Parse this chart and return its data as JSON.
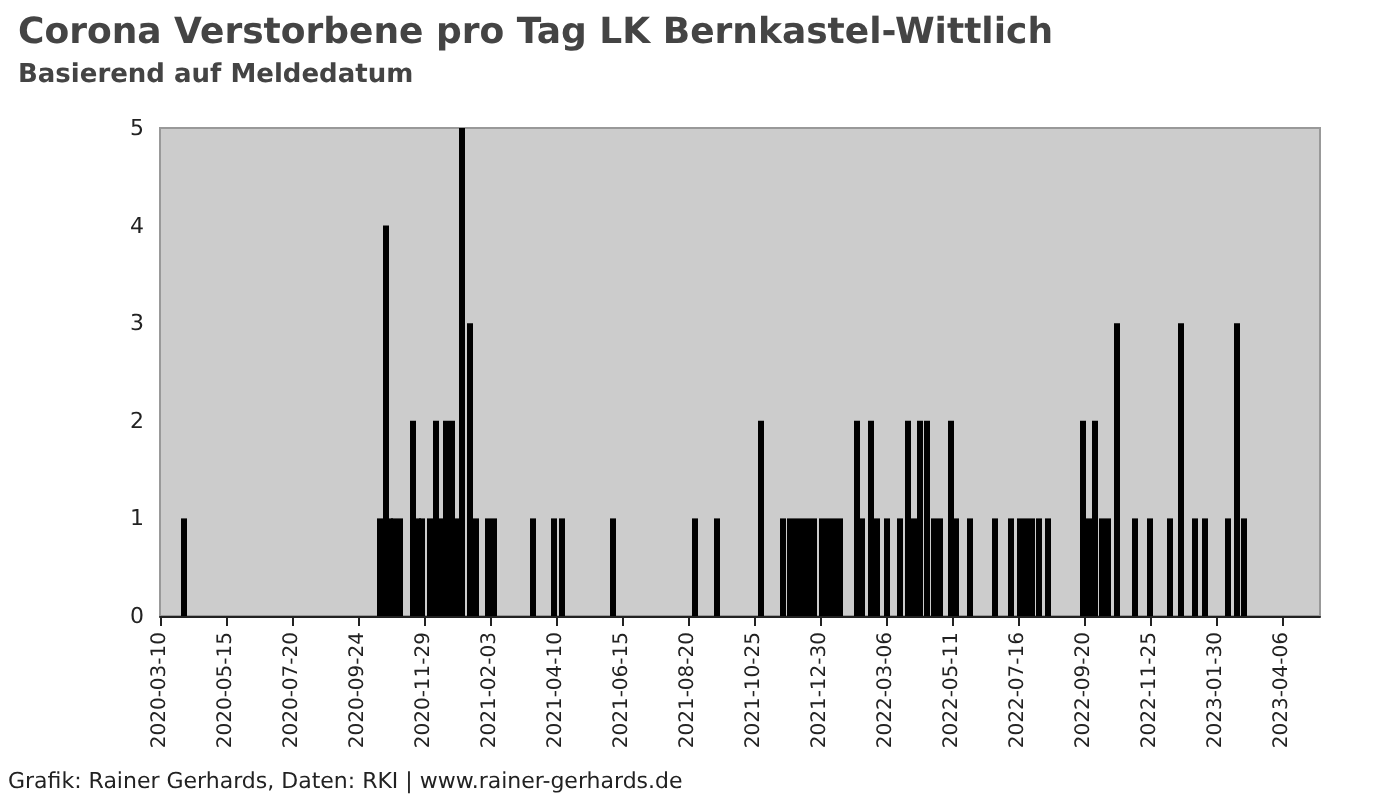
{
  "chart_data": {
    "type": "bar",
    "title": "Corona Verstorbene pro Tag LK Bernkastel-Wittlich",
    "subtitle": "Basierend auf Meldedatum",
    "annotations": [
      "Grafik: Rainer Gerhards, Daten: RKI | www.rainer-gerhards.de"
    ],
    "x": [
      "2020-04-03",
      "2020-10-16",
      "2020-10-22",
      "2020-10-26",
      "2020-10-30",
      "2020-11-05",
      "2020-11-18",
      "2020-11-23",
      "2020-11-27",
      "2020-12-05",
      "2020-12-11",
      "2020-12-17",
      "2020-12-21",
      "2020-12-27",
      "2021-01-02",
      "2021-01-06",
      "2021-01-14",
      "2021-01-20",
      "2021-02-01",
      "2021-02-07",
      "2021-03-18",
      "2021-04-08",
      "2021-04-16",
      "2021-06-06",
      "2021-08-27",
      "2021-09-18",
      "2021-11-01",
      "2021-11-23",
      "2021-11-30",
      "2021-12-06",
      "2021-12-12",
      "2021-12-18",
      "2021-12-24",
      "2022-01-01",
      "2022-01-07",
      "2022-01-13",
      "2022-01-19",
      "2022-02-05",
      "2022-02-10",
      "2022-02-19",
      "2022-02-25",
      "2022-03-07",
      "2022-03-20",
      "2022-03-28",
      "2022-04-03",
      "2022-04-09",
      "2022-04-16",
      "2022-04-23",
      "2022-04-29",
      "2022-05-10",
      "2022-05-15",
      "2022-05-29",
      "2022-06-23",
      "2022-07-09",
      "2022-07-18",
      "2022-07-24",
      "2022-07-30",
      "2022-08-06",
      "2022-08-15",
      "2022-09-19",
      "2022-09-25",
      "2022-10-01",
      "2022-10-08",
      "2022-10-14",
      "2022-10-23",
      "2022-11-10",
      "2022-11-25",
      "2022-12-15",
      "2022-12-26",
      "2023-01-09",
      "2023-01-19",
      "2023-02-11",
      "2023-02-20",
      "2023-02-27"
    ],
    "values": [
      1,
      1,
      4,
      1,
      1,
      1,
      2,
      1,
      1,
      1,
      2,
      1,
      2,
      2,
      1,
      5,
      3,
      1,
      1,
      1,
      1,
      1,
      1,
      1,
      1,
      1,
      2,
      1,
      1,
      1,
      1,
      1,
      1,
      1,
      1,
      1,
      1,
      2,
      1,
      2,
      1,
      1,
      1,
      2,
      1,
      2,
      2,
      1,
      1,
      2,
      1,
      1,
      1,
      1,
      1,
      1,
      1,
      1,
      1,
      2,
      1,
      2,
      1,
      1,
      3,
      1,
      1,
      1,
      3,
      1,
      1,
      1,
      3,
      1
    ],
    "color": "#000000",
    "xlim": [
      "2020-03-10",
      "2023-05-14"
    ],
    "xticks": [
      "2020-03-10",
      "2020-05-15",
      "2020-07-20",
      "2020-09-24",
      "2020-11-29",
      "2021-02-03",
      "2021-04-10",
      "2021-06-15",
      "2021-08-20",
      "2021-10-25",
      "2021-12-30",
      "2022-03-06",
      "2022-05-11",
      "2022-07-16",
      "2022-09-20",
      "2022-11-25",
      "2023-01-30",
      "2023-04-06"
    ],
    "ylim": [
      0,
      5
    ],
    "yticks": [
      0,
      1,
      2,
      3,
      4,
      5
    ],
    "grid": false
  }
}
